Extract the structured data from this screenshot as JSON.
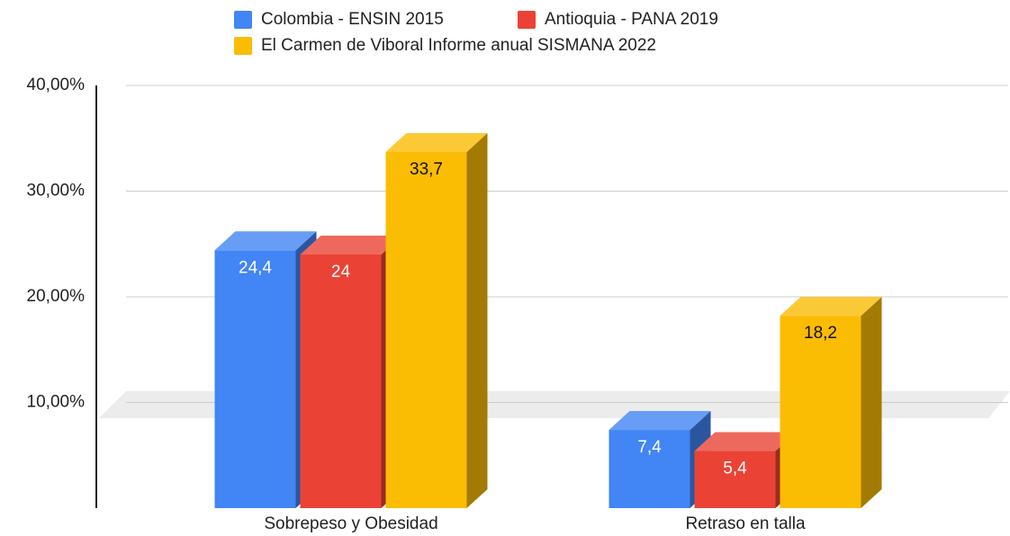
{
  "chart_data": {
    "type": "bar3d",
    "categories": [
      "Sobrepeso y Obesidad",
      "Retraso en talla"
    ],
    "series": [
      {
        "name": "Colombia - ENSIN 2015",
        "color": "#4285f4",
        "values": [
          24.4,
          7.4
        ],
        "value_labels": [
          "24,4",
          "7,4"
        ]
      },
      {
        "name": "Antioquia - PANA 2019",
        "color": "#ea4335",
        "values": [
          24,
          5.4
        ],
        "value_labels": [
          "24",
          "5,4"
        ]
      },
      {
        "name": "El Carmen de Viboral Informe anual SISMANA 2022",
        "color": "#fbbc04",
        "values": [
          33.7,
          18.2
        ],
        "value_labels": [
          "33,7",
          "18,2"
        ]
      }
    ],
    "ylim": [
      0,
      40
    ],
    "yticks": [
      {
        "value": 10,
        "label": "10,00%"
      },
      {
        "value": 20,
        "label": "20,00%"
      },
      {
        "value": 30,
        "label": "30,00%"
      },
      {
        "value": 40,
        "label": "40,00%"
      }
    ],
    "grid": true
  }
}
